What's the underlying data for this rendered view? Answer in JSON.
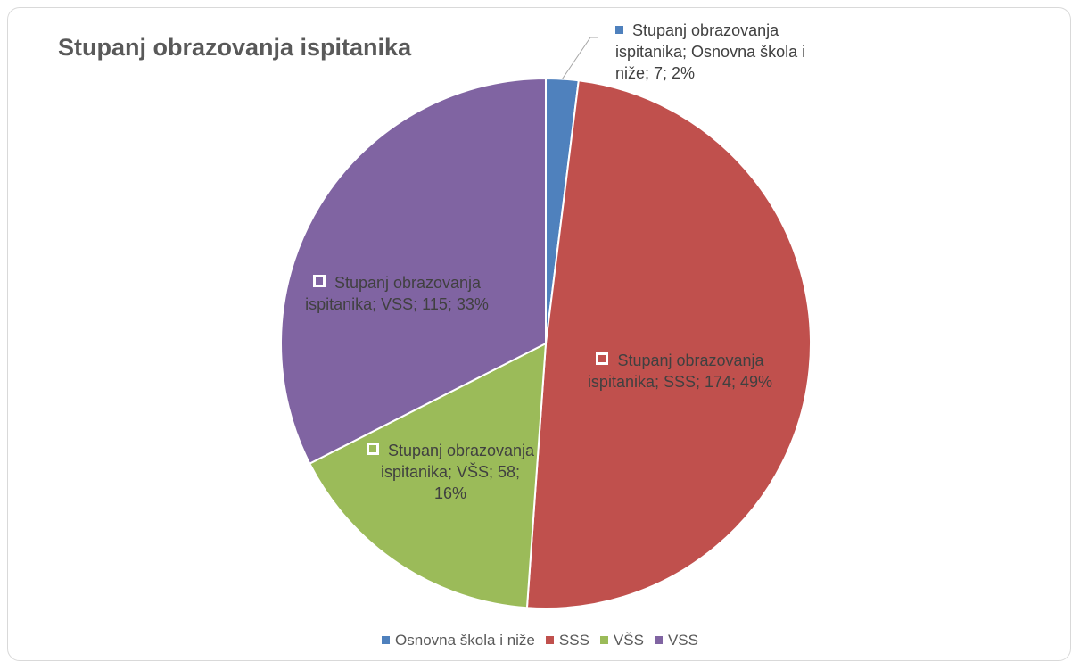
{
  "chart_data": {
    "type": "pie",
    "title": "Stupanj obrazovanja ispitanika",
    "categories": [
      "Osnovna škola i niže",
      "SSS",
      "VŠS",
      "VSS"
    ],
    "values": [
      7,
      174,
      58,
      115
    ],
    "value_labels": [
      "Stupanj obrazovanja ispitanika; Osnovna škola i niže; 7; 2%",
      "Stupanj obrazovanja ispitanika; SSS; 174; 49%",
      "Stupanj obrazovanja ispitanika; VŠS; 58; 16%",
      "Stupanj obrazovanja ispitanika; VSS; 115; 33%"
    ],
    "colors": [
      "#4f81bd",
      "#c0504d",
      "#9bbb59",
      "#8064a2"
    ],
    "legend": "bottom"
  }
}
